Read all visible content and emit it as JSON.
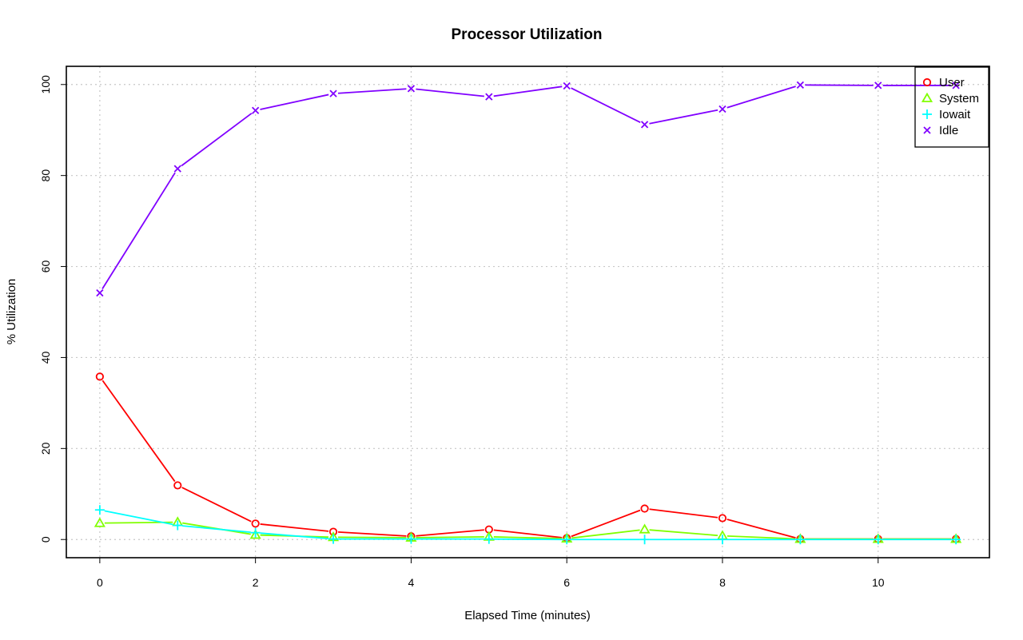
{
  "chart_data": {
    "type": "line",
    "title": "Processor Utilization",
    "xlabel": "Elapsed Time (minutes)",
    "ylabel": "% Utilization",
    "xlim": [
      -0.43,
      11.43
    ],
    "ylim": [
      -4,
      104
    ],
    "xticks": [
      0,
      2,
      4,
      6,
      8,
      10
    ],
    "yticks": [
      0,
      20,
      40,
      60,
      80,
      100
    ],
    "grid": true,
    "legend_position": "top-right",
    "x": [
      0,
      1,
      2,
      3,
      4,
      5,
      6,
      7,
      8,
      9,
      10,
      11
    ],
    "series": [
      {
        "name": "User",
        "color": "#ff0000",
        "marker": "circle",
        "values": [
          35.8,
          11.9,
          3.5,
          1.7,
          0.7,
          2.2,
          0.3,
          6.8,
          4.7,
          0.1,
          0.1,
          0.1
        ]
      },
      {
        "name": "System",
        "color": "#80ff00",
        "marker": "triangle",
        "values": [
          3.6,
          3.8,
          1.0,
          0.5,
          0.4,
          0.6,
          0.2,
          2.2,
          0.8,
          0.1,
          0.1,
          0.1
        ]
      },
      {
        "name": "Iowait",
        "color": "#00ffff",
        "marker": "plus",
        "values": [
          6.5,
          3.1,
          1.5,
          0.1,
          0.1,
          0.1,
          0.0,
          0.0,
          0.0,
          0.0,
          0.0,
          0.0
        ]
      },
      {
        "name": "Idle",
        "color": "#8000ff",
        "marker": "cross",
        "values": [
          54.2,
          81.5,
          94.3,
          98.0,
          99.1,
          97.3,
          99.7,
          91.2,
          94.6,
          99.9,
          99.8,
          99.8
        ]
      }
    ]
  }
}
